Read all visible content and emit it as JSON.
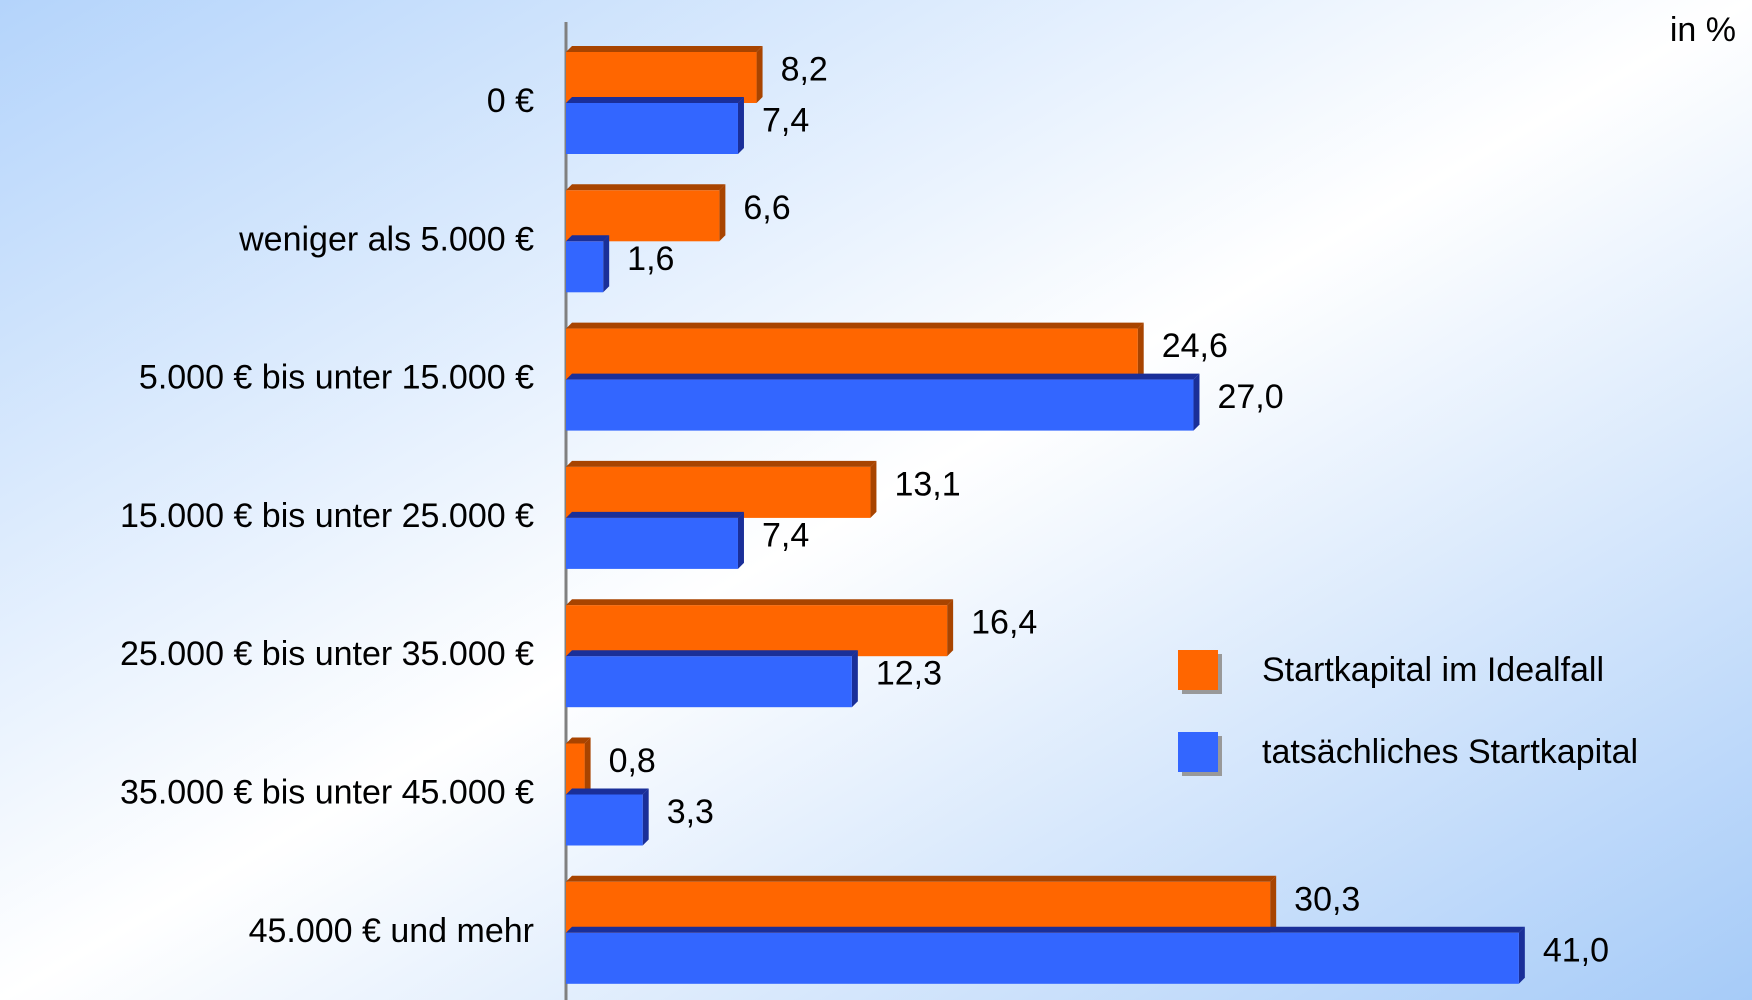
{
  "chart_data": {
    "type": "bar",
    "orientation": "horizontal",
    "unit_label": "in %",
    "categories": [
      "0 €",
      "weniger als 5.000 €",
      "5.000 € bis unter 15.000 €",
      "15.000 € bis unter 25.000 €",
      "25.000 € bis unter 35.000 €",
      "35.000 € bis unter 45.000 €",
      "45.000 € und mehr"
    ],
    "series": [
      {
        "name": "Startkapital im Idealfall",
        "color": "#ff6600",
        "side_color": "#a84400",
        "values": [
          8.2,
          6.6,
          24.6,
          13.1,
          16.4,
          0.8,
          30.3
        ],
        "value_labels": [
          "8,2",
          "6,6",
          "24,6",
          "13,1",
          "16,4",
          "0,8",
          "30,3"
        ]
      },
      {
        "name": "tatsächliches Startkapital",
        "color": "#3366ff",
        "side_color": "#1a2f99",
        "values": [
          7.4,
          1.6,
          27.0,
          7.4,
          12.3,
          3.3,
          41.0
        ],
        "value_labels": [
          "7,4",
          "1,6",
          "27,0",
          "7,4",
          "12,3",
          "3,3",
          "41,0"
        ]
      }
    ],
    "xlim": [
      0,
      50
    ],
    "legend": "right",
    "grid": false
  }
}
